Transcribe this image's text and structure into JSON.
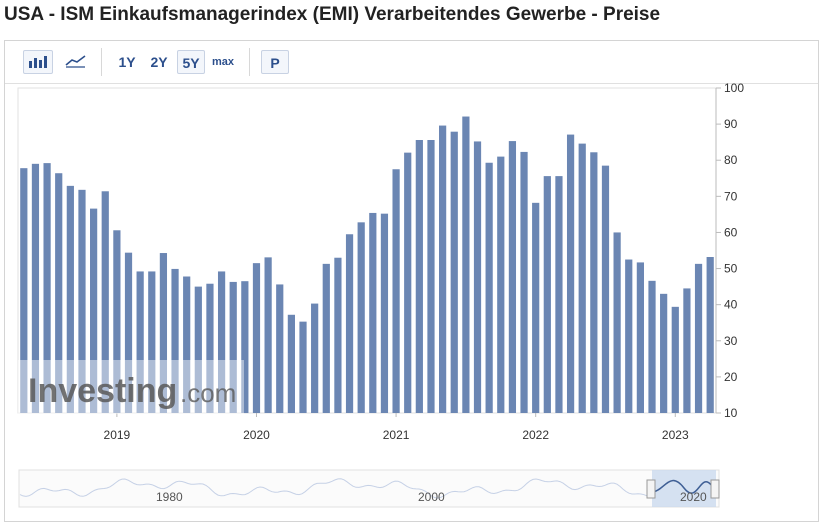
{
  "title": "USA - ISM Einkaufsmanagerindex (EMI) Verarbeitendes Gewerbe - Preise",
  "toolbar": {
    "bar_icon": "bar-chart-icon",
    "line_icon": "line-chart-icon",
    "ranges": [
      "1Y",
      "2Y",
      "5Y",
      "max"
    ],
    "selected_range": "5Y",
    "p_label": "P"
  },
  "watermark": {
    "brand": "Investing",
    "suffix": ".com"
  },
  "navigator": {
    "labels": [
      "1980",
      "2000",
      "2020"
    ]
  },
  "colors": {
    "bar": "#6b86b3",
    "nav_handle": "#c8d8ee"
  },
  "chart_data": {
    "type": "bar",
    "title": "",
    "xlabel": "",
    "ylabel": "",
    "ylim": [
      10,
      100
    ],
    "yticks": [
      10,
      20,
      30,
      40,
      50,
      60,
      70,
      80,
      90,
      100
    ],
    "x_tick_labels": [
      "2019",
      "2020",
      "2021",
      "2022",
      "2023"
    ],
    "x_start": "2018-05",
    "x_end": "2023-04",
    "categories": [
      "2018-05",
      "2018-06",
      "2018-07",
      "2018-08",
      "2018-09",
      "2018-10",
      "2018-11",
      "2018-12",
      "2019-01",
      "2019-02",
      "2019-03",
      "2019-04",
      "2019-05",
      "2019-06",
      "2019-07",
      "2019-08",
      "2019-09",
      "2019-10",
      "2019-11",
      "2019-12",
      "2020-01",
      "2020-02",
      "2020-03",
      "2020-04",
      "2020-05",
      "2020-06",
      "2020-07",
      "2020-08",
      "2020-09",
      "2020-10",
      "2020-11",
      "2020-12",
      "2021-01",
      "2021-02",
      "2021-03",
      "2021-04",
      "2021-05",
      "2021-06",
      "2021-07",
      "2021-08",
      "2021-09",
      "2021-10",
      "2021-11",
      "2021-12",
      "2022-01",
      "2022-02",
      "2022-03",
      "2022-04",
      "2022-05",
      "2022-06",
      "2022-07",
      "2022-08",
      "2022-09",
      "2022-10",
      "2022-11",
      "2022-12",
      "2023-01",
      "2023-02",
      "2023-03",
      "2023-04"
    ],
    "values": [
      77.8,
      79.0,
      79.2,
      76.4,
      72.9,
      71.8,
      66.6,
      71.4,
      60.6,
      54.4,
      49.2,
      49.2,
      54.3,
      49.9,
      47.8,
      45.0,
      45.8,
      49.2,
      46.3,
      46.5,
      51.5,
      53.1,
      45.6,
      37.2,
      35.3,
      40.3,
      51.3,
      53.0,
      59.5,
      62.8,
      65.4,
      65.2,
      77.5,
      82.1,
      85.6,
      85.6,
      89.6,
      87.9,
      92.1,
      85.2,
      79.3,
      81.0,
      85.3,
      82.3,
      68.2,
      75.6,
      75.6,
      87.1,
      84.6,
      82.2,
      78.5,
      60.0,
      52.5,
      51.7,
      46.6,
      43.0,
      39.4,
      44.5,
      51.3,
      53.2
    ]
  }
}
